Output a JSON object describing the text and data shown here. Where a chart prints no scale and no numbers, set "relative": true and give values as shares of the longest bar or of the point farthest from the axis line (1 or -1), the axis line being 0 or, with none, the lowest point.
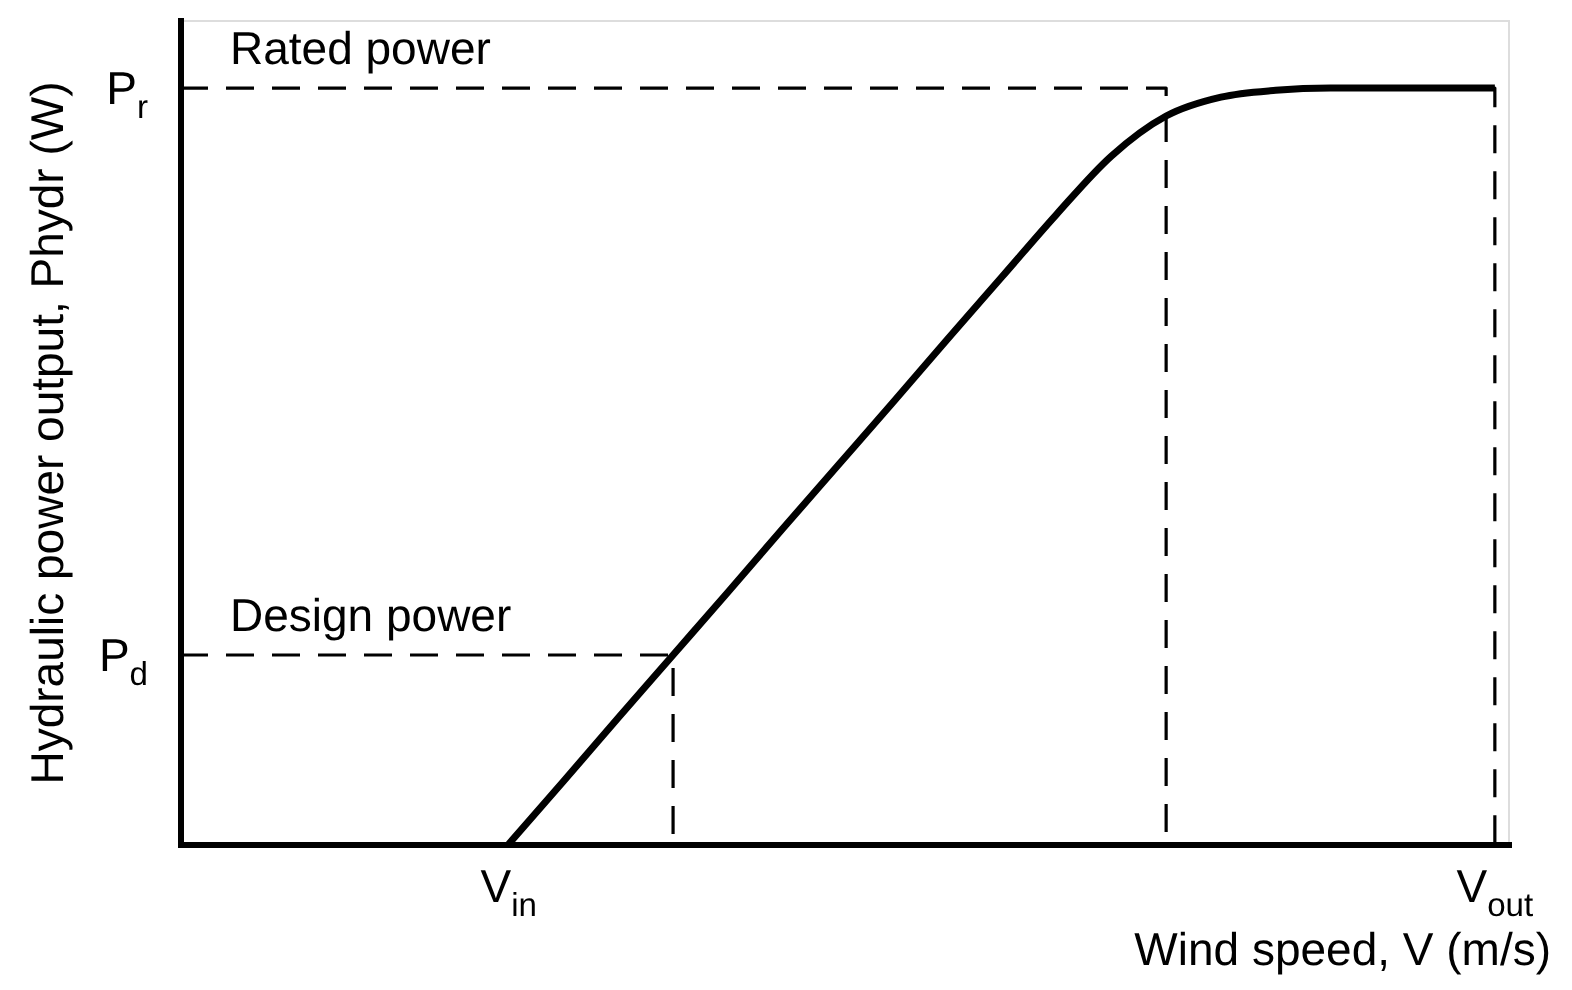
{
  "chart_data": {
    "type": "line",
    "relative": true,
    "xlabel": "Wind speed, V (m/s)",
    "ylabel": "Hydraulic power output, Phydr (W)",
    "categories": [
      null,
      null,
      null,
      null,
      null,
      null,
      "V$_{in}$",
      null,
      null,
      null,
      null,
      null,
      null,
      null,
      null,
      null,
      null,
      null,
      null,
      null,
      null,
      null,
      null,
      null,
      "V$_{out}$"
    ],
    "annotations": [
      "P$_{r}$",
      "P$_{d}$"
    ],
    "grid": false,
    "legend": false,
    "marker": "none",
    "series": [
      {
        "color": "#000000",
        "line_style": "solid",
        "values": [
          null,
          null,
          null,
          null,
          null,
          null,
          0,
          0.083,
          0.167,
          0.25,
          0.333,
          0.417,
          0.5,
          0.583,
          0.667,
          0.75,
          0.833,
          0.91,
          0.963,
          0.988,
          0.997,
          1,
          1,
          1,
          1
        ]
      },
      {
        "name": "Rated power",
        "type": "step",
        "color": "#000000",
        "line_style": "dashed",
        "values": [
          1,
          1,
          1,
          1,
          1,
          1,
          1,
          1,
          1,
          1,
          1,
          1,
          1,
          1,
          1,
          1,
          1,
          1,
          0,
          null,
          null,
          null,
          null,
          null,
          null
        ]
      },
      {
        "name": "Design power",
        "type": "step",
        "color": "#000000",
        "line_style": "dashed",
        "values": [
          0.25,
          0.25,
          0.25,
          0.25,
          0.25,
          0.25,
          0.25,
          0.25,
          0.25,
          0,
          null,
          null,
          null,
          null,
          null,
          null,
          null,
          null,
          null,
          null,
          null,
          null,
          null,
          null,
          null
        ]
      },
      {
        "type": "step",
        "color": "#000000",
        "line_style": "dashed",
        "values": [
          null,
          null,
          null,
          null,
          null,
          null,
          null,
          null,
          null,
          null,
          null,
          null,
          null,
          null,
          null,
          null,
          null,
          null,
          null,
          null,
          null,
          null,
          null,
          1,
          0
        ]
      }
    ]
  }
}
